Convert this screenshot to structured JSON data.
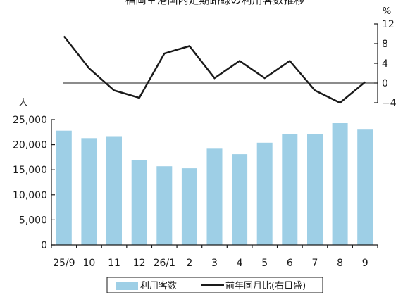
{
  "chart_data": {
    "title": "福岡空港国内定期路線の利用客数推移",
    "type": "bar+line",
    "categories": [
      "25/9",
      "10",
      "11",
      "12",
      "26/1",
      "2",
      "3",
      "4",
      "5",
      "6",
      "7",
      "8",
      "9"
    ],
    "series": [
      {
        "name": "利用客数",
        "type": "bar",
        "axis": "left",
        "color": "#9ecfe6",
        "values": [
          22800,
          21300,
          21700,
          16900,
          15700,
          15300,
          19200,
          18100,
          20400,
          22100,
          22100,
          24300,
          23000
        ]
      },
      {
        "name": "前年同月比(右目盛)",
        "type": "line",
        "axis": "right",
        "color": "#1a1a1a",
        "values": [
          9.5,
          3,
          -1.5,
          -3,
          6,
          7.5,
          1,
          4.5,
          1,
          4.5,
          -1.5,
          -4,
          0.2
        ]
      }
    ],
    "left_axis": {
      "unit": "人",
      "ylim": [
        0,
        25000
      ],
      "ticks": [
        "0",
        "5,000",
        "10,000",
        "15,000",
        "20,000",
        "25,000"
      ],
      "tick_values": [
        0,
        5000,
        10000,
        15000,
        20000,
        25000
      ]
    },
    "right_axis": {
      "unit": "%",
      "ylim": [
        -4,
        12
      ],
      "ticks": [
        "−4",
        "0",
        "4",
        "8",
        "12"
      ],
      "tick_values": [
        -4,
        0,
        4,
        8,
        12
      ]
    },
    "legend_position": "bottom",
    "grid": false
  }
}
